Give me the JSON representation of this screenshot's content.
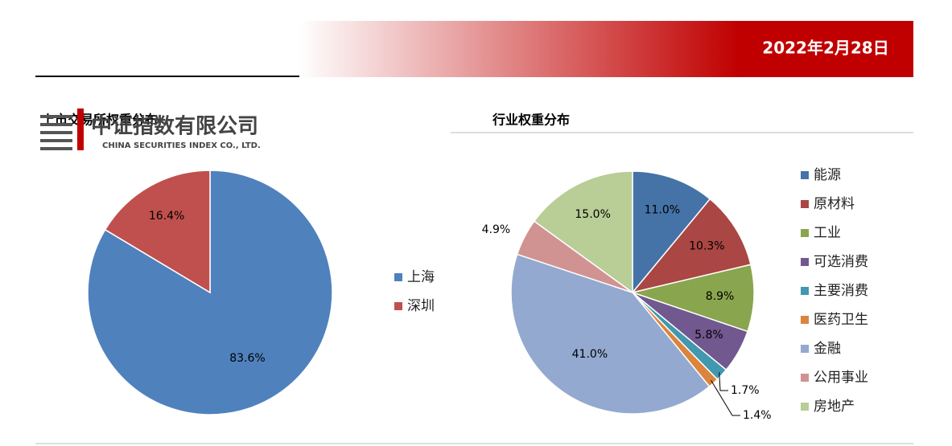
{
  "header": {
    "date": "2022年2月28日",
    "logo": "中证指数有限公司",
    "logo_en": "CHINA SECURITIES INDEX CO., LTD."
  },
  "chart_data": [
    {
      "type": "pie",
      "title": "上市交易所权重分布",
      "categories": [
        "上海",
        "深圳"
      ],
      "values": [
        83.6,
        16.4
      ],
      "value_labels": [
        "83.6%",
        "16.4%"
      ],
      "colors": [
        "#4f81bd",
        "#c0504d"
      ]
    },
    {
      "type": "pie",
      "title": "行业权重分布",
      "categories": [
        "能源",
        "原材料",
        "工业",
        "可选消费",
        "主要消费",
        "医药卫生",
        "金融",
        "公用事业",
        "房地产"
      ],
      "values": [
        11.0,
        10.3,
        8.9,
        5.8,
        1.7,
        1.4,
        41.0,
        4.9,
        15.0
      ],
      "value_labels": [
        "11.0%",
        "10.3%",
        "8.9%",
        "5.8%",
        "1.7%",
        "1.4%",
        "41.0%",
        "4.9%",
        "15.0%"
      ],
      "colors": [
        "#4572a7",
        "#aa4643",
        "#89a54e",
        "#71588f",
        "#4198af",
        "#db843d",
        "#93a9cf",
        "#d19392",
        "#b9cd96"
      ]
    }
  ]
}
